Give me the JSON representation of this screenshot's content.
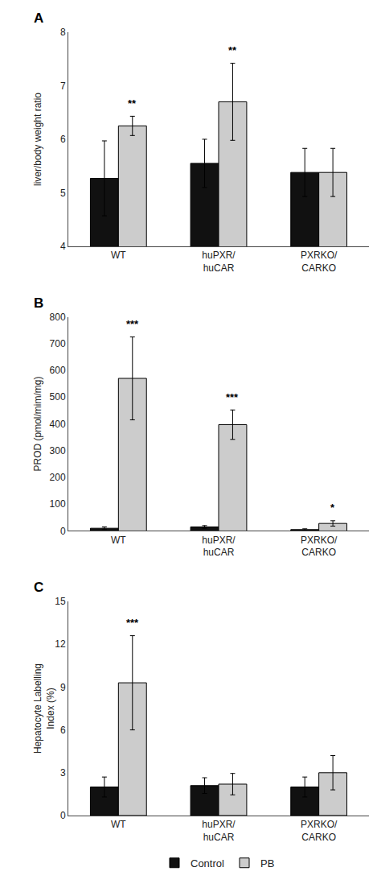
{
  "chart_data": [
    {
      "type": "bar",
      "title": "A",
      "ylabel": "liver/body weight ratio",
      "categories": [
        "WT",
        "huPXR/\nhuCAR",
        "PXRKO/\nCARKO"
      ],
      "series": [
        {
          "name": "Control",
          "color": "#111111",
          "values": [
            5.27,
            5.55,
            5.38
          ],
          "errors": [
            0.7,
            0.45,
            0.45
          ]
        },
        {
          "name": "PB",
          "color": "#cccccc",
          "values": [
            6.25,
            6.7,
            5.38
          ],
          "errors": [
            0.18,
            0.72,
            0.45
          ]
        }
      ],
      "annotations": [
        {
          "category": "WT",
          "series": "PB",
          "text": "**"
        },
        {
          "category": "huPXR/\nhuCAR",
          "series": "PB",
          "text": "**"
        }
      ],
      "ylim": [
        4,
        8
      ],
      "yticks": [
        4,
        5,
        6,
        7,
        8
      ],
      "grid": false
    },
    {
      "type": "bar",
      "title": "B",
      "ylabel": "PROD (pmol/mim/mg)",
      "categories": [
        "WT",
        "huPXR/\nhuCAR",
        "PXRKO/\nCARKO"
      ],
      "series": [
        {
          "name": "Control",
          "color": "#111111",
          "values": [
            10,
            15,
            5
          ],
          "errors": [
            5,
            5,
            3
          ]
        },
        {
          "name": "PB",
          "color": "#cccccc",
          "values": [
            570,
            397,
            28
          ],
          "errors": [
            155,
            55,
            10
          ]
        }
      ],
      "annotations": [
        {
          "category": "WT",
          "series": "PB",
          "text": "***"
        },
        {
          "category": "huPXR/\nhuCAR",
          "series": "PB",
          "text": "***"
        },
        {
          "category": "PXRKO/\nCARKO",
          "series": "PB",
          "text": "*"
        }
      ],
      "ylim": [
        0,
        800
      ],
      "yticks": [
        0,
        100,
        200,
        300,
        400,
        500,
        600,
        700,
        800
      ],
      "grid": false
    },
    {
      "type": "bar",
      "title": "C",
      "ylabel": "Hepatocyte Labelling\nIndex (%)",
      "categories": [
        "WT",
        "huPXR/\nhuCAR",
        "PXRKO/\nCARKO"
      ],
      "series": [
        {
          "name": "Control",
          "color": "#111111",
          "values": [
            2.0,
            2.1,
            2.0
          ],
          "errors": [
            0.7,
            0.55,
            0.7
          ]
        },
        {
          "name": "PB",
          "color": "#cccccc",
          "values": [
            9.3,
            2.2,
            3.0
          ],
          "errors": [
            3.3,
            0.75,
            1.2
          ]
        }
      ],
      "annotations": [
        {
          "category": "WT",
          "series": "PB",
          "text": "***"
        }
      ],
      "ylim": [
        0,
        15
      ],
      "yticks": [
        0,
        3,
        6,
        9,
        12,
        15
      ],
      "grid": false,
      "legend": "bottom"
    }
  ]
}
